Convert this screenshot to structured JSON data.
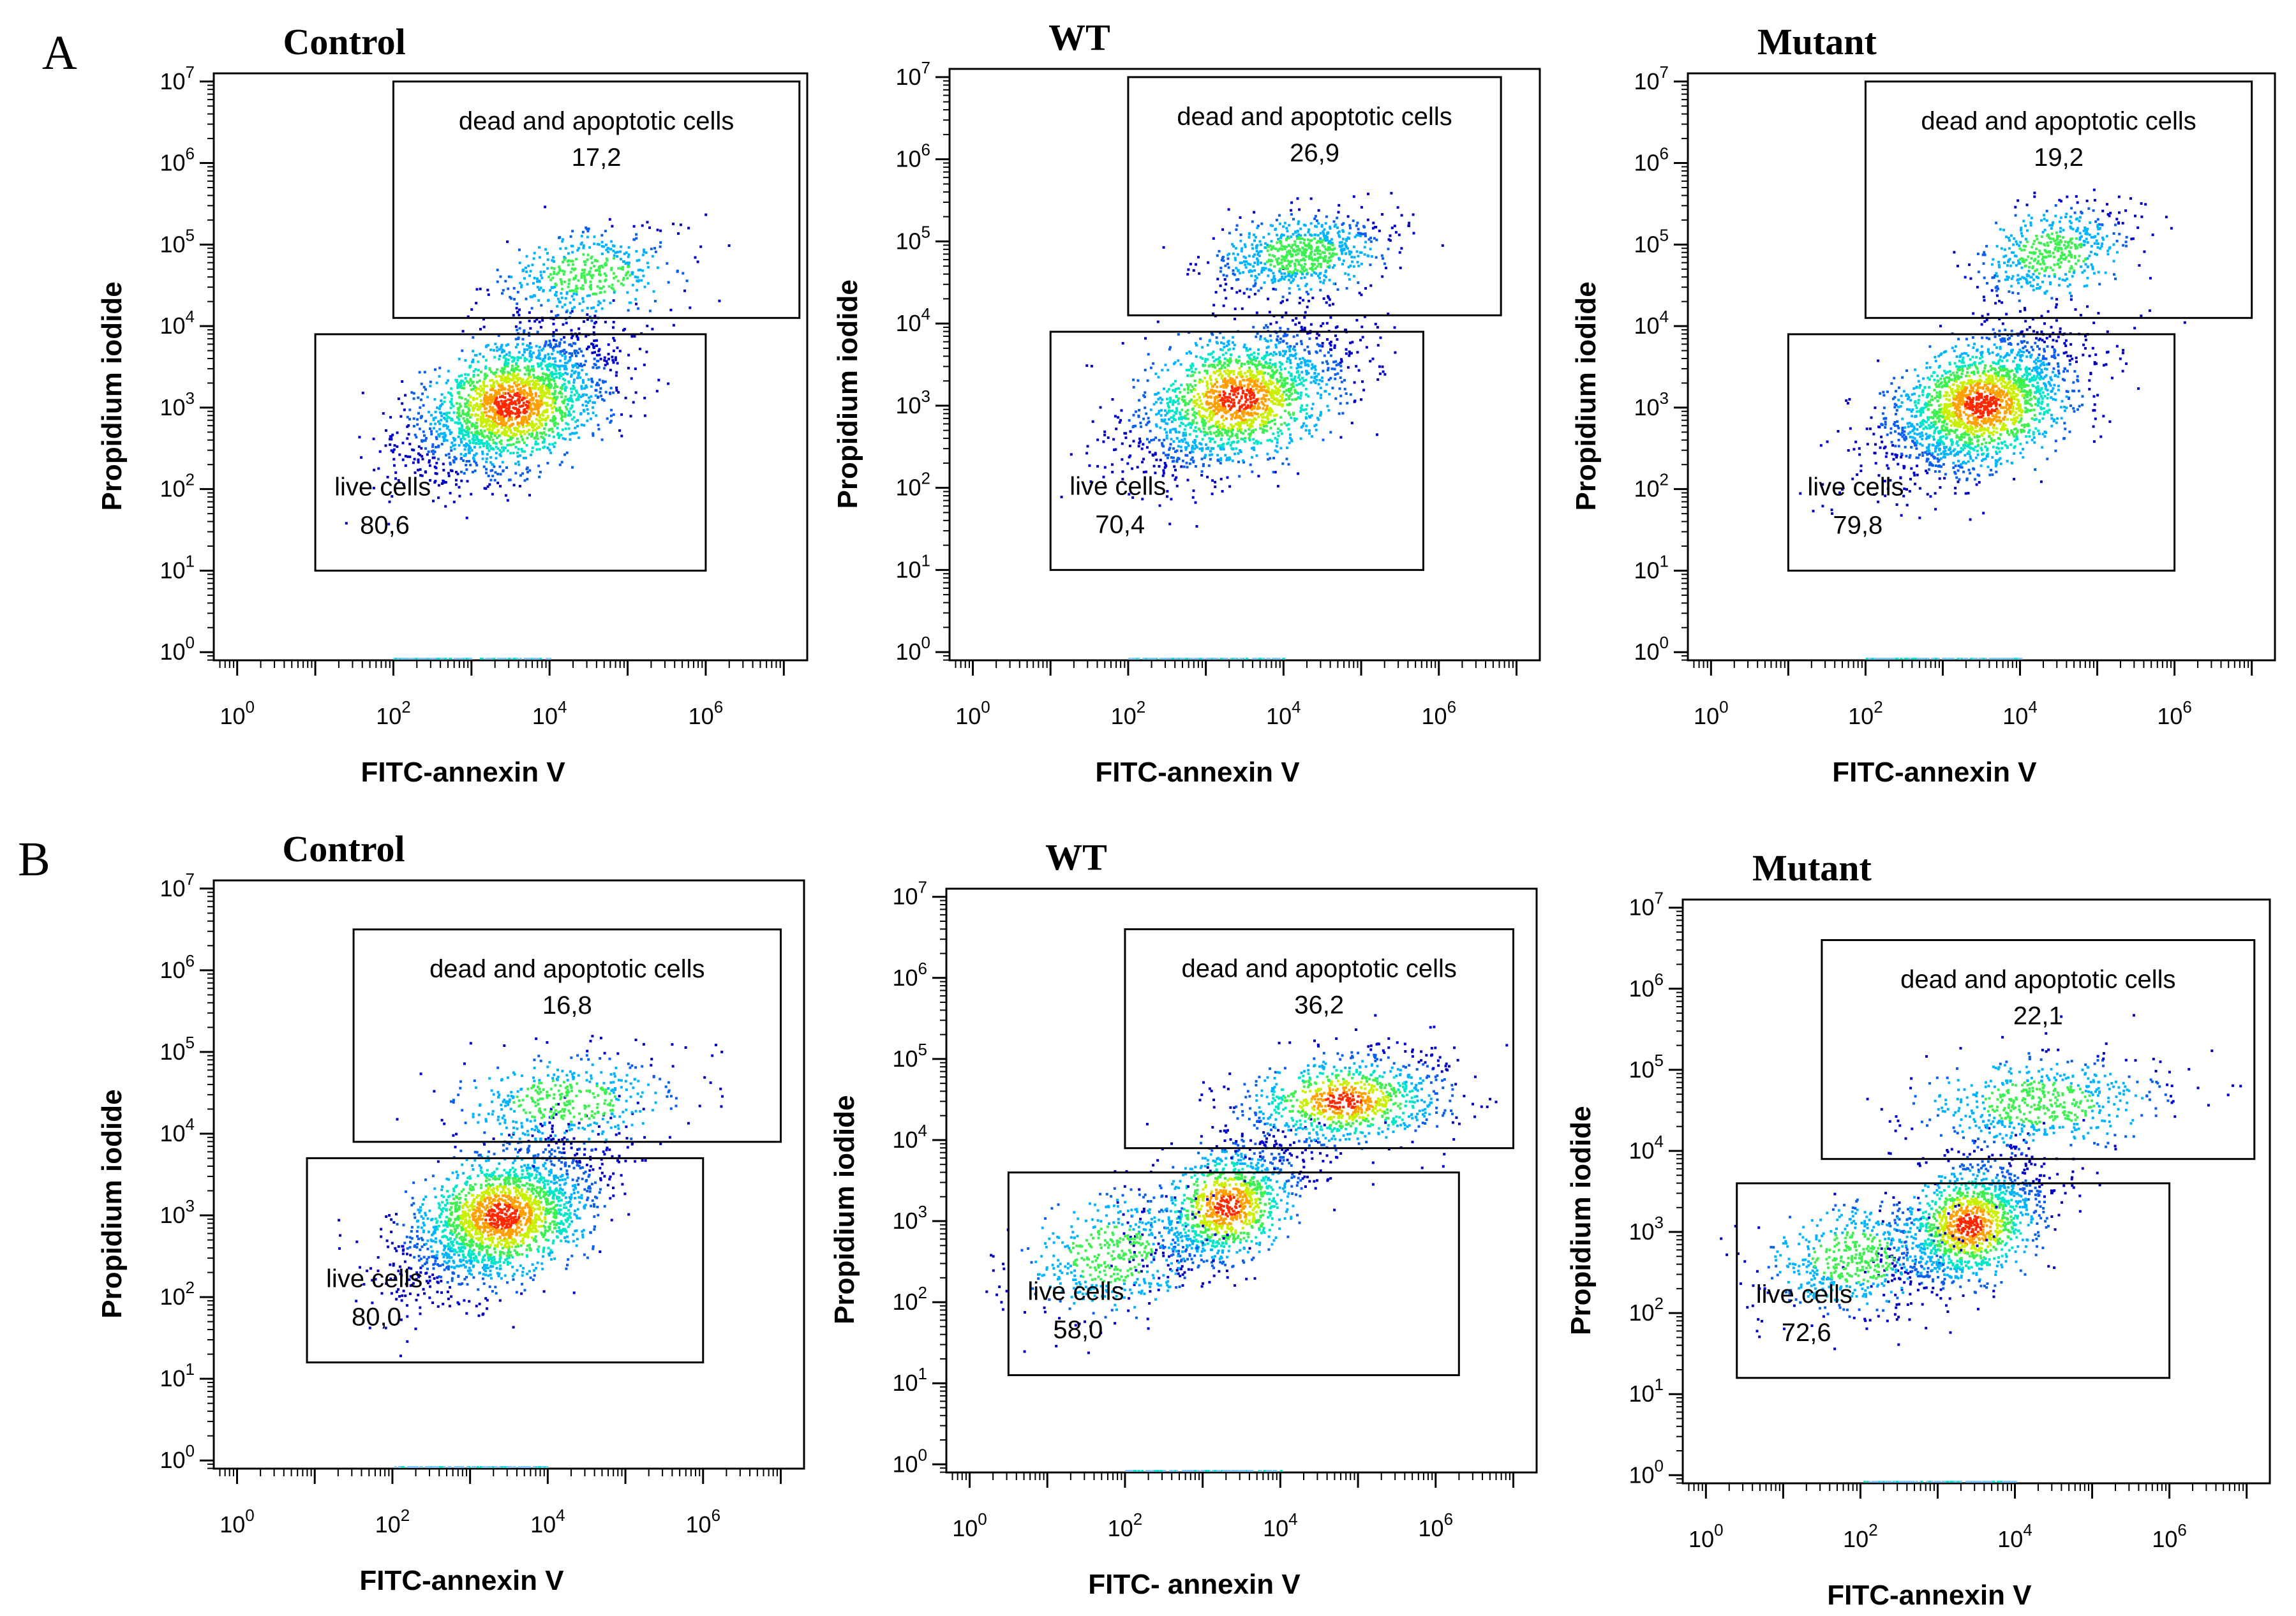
{
  "figure": {
    "rows": [
      {
        "label": "A",
        "panels": [
          0,
          1,
          2
        ]
      },
      {
        "label": "B",
        "panels": [
          3,
          4,
          5
        ]
      }
    ]
  },
  "density_palette": [
    "#0000c8",
    "#0a5ff0",
    "#00b4ff",
    "#00e6c8",
    "#3cf050",
    "#c8f000",
    "#ffa000",
    "#ff2800"
  ],
  "chart_data": [
    {
      "type": "scatter",
      "plot_kind": "flow-cytometry-density",
      "panel": "A",
      "title": "Control",
      "xlabel": "FITC-annexin V",
      "ylabel": "Propidium iodide",
      "x_ticks": [
        "10^0",
        "10^2",
        "10^4",
        "10^6"
      ],
      "y_ticks": [
        "10^0",
        "10^1",
        "10^2",
        "10^3",
        "10^4",
        "10^5",
        "10^6",
        "10^7"
      ],
      "xlim_log10": [
        -0.3,
        7.3
      ],
      "ylim_log10": [
        -0.1,
        7.1
      ],
      "gates": [
        {
          "name": "dead and apoptotic cells",
          "value": "17,2",
          "x_range_log10": [
            2.0,
            7.2
          ],
          "y_range_log10": [
            4.1,
            7.0
          ]
        },
        {
          "name": "live cells",
          "value": "80,6",
          "x_range_log10": [
            1.0,
            6.0
          ],
          "y_range_log10": [
            1.0,
            3.9
          ]
        }
      ],
      "populations": [
        {
          "center_log10": [
            3.5,
            3.05
          ],
          "spread_log10": [
            0.65,
            0.45
          ],
          "correlation": 0.5,
          "share": 0.8
        },
        {
          "center_log10": [
            4.5,
            4.65
          ],
          "spread_log10": [
            0.6,
            0.28
          ],
          "correlation": 0.35,
          "share": 0.17
        }
      ]
    },
    {
      "type": "scatter",
      "plot_kind": "flow-cytometry-density",
      "panel": "A",
      "title": "WT",
      "xlabel": "FITC-annexin V",
      "ylabel": "Propidium iodide",
      "x_ticks": [
        "10^0",
        "10^2",
        "10^4",
        "10^6"
      ],
      "y_ticks": [
        "10^0",
        "10^1",
        "10^2",
        "10^3",
        "10^4",
        "10^5",
        "10^6",
        "10^7"
      ],
      "xlim_log10": [
        -0.3,
        7.3
      ],
      "ylim_log10": [
        -0.1,
        7.1
      ],
      "gates": [
        {
          "name": "dead and apoptotic cells",
          "value": "26,9",
          "x_range_log10": [
            2.0,
            6.8
          ],
          "y_range_log10": [
            4.1,
            7.0
          ]
        },
        {
          "name": "live cells",
          "value": "70,4",
          "x_range_log10": [
            1.0,
            5.8
          ],
          "y_range_log10": [
            1.0,
            3.9
          ]
        }
      ],
      "populations": [
        {
          "center_log10": [
            3.4,
            3.1
          ],
          "spread_log10": [
            0.7,
            0.45
          ],
          "correlation": 0.5,
          "share": 0.7
        },
        {
          "center_log10": [
            4.2,
            4.85
          ],
          "spread_log10": [
            0.55,
            0.25
          ],
          "correlation": 0.3,
          "share": 0.27
        }
      ]
    },
    {
      "type": "scatter",
      "plot_kind": "flow-cytometry-density",
      "panel": "A",
      "title": "Mutant",
      "xlabel": "FITC-annexin V",
      "ylabel": "Propidium iodide",
      "x_ticks": [
        "10^0",
        "10^2",
        "10^4",
        "10^6"
      ],
      "y_ticks": [
        "10^0",
        "10^1",
        "10^2",
        "10^3",
        "10^4",
        "10^5",
        "10^6",
        "10^7"
      ],
      "xlim_log10": [
        -0.3,
        7.3
      ],
      "ylim_log10": [
        -0.1,
        7.1
      ],
      "gates": [
        {
          "name": "dead and apoptotic cells",
          "value": "19,2",
          "x_range_log10": [
            2.0,
            7.0
          ],
          "y_range_log10": [
            4.1,
            7.0
          ]
        },
        {
          "name": "live cells",
          "value": "79,8",
          "x_range_log10": [
            1.0,
            6.0
          ],
          "y_range_log10": [
            1.0,
            3.9
          ]
        }
      ],
      "populations": [
        {
          "center_log10": [
            3.5,
            3.05
          ],
          "spread_log10": [
            0.65,
            0.45
          ],
          "correlation": 0.5,
          "share": 0.8
        },
        {
          "center_log10": [
            4.4,
            4.9
          ],
          "spread_log10": [
            0.5,
            0.3
          ],
          "correlation": 0.4,
          "share": 0.19
        }
      ]
    },
    {
      "type": "scatter",
      "plot_kind": "flow-cytometry-density",
      "panel": "B",
      "title": "Control",
      "xlabel": "FITC-annexin V",
      "ylabel": "Propidium iodide",
      "x_ticks": [
        "10^0",
        "10^2",
        "10^4",
        "10^6"
      ],
      "y_ticks": [
        "10^0",
        "10^1",
        "10^2",
        "10^3",
        "10^4",
        "10^5",
        "10^6",
        "10^7"
      ],
      "xlim_log10": [
        -0.3,
        7.3
      ],
      "ylim_log10": [
        -0.1,
        7.1
      ],
      "gates": [
        {
          "name": "dead and apoptotic cells",
          "value": "16,8",
          "x_range_log10": [
            1.5,
            7.0
          ],
          "y_range_log10": [
            3.9,
            6.5
          ]
        },
        {
          "name": "live cells",
          "value": "80,0",
          "x_range_log10": [
            0.9,
            6.0
          ],
          "y_range_log10": [
            1.2,
            3.7
          ]
        }
      ],
      "populations": [
        {
          "center_log10": [
            3.4,
            3.0
          ],
          "spread_log10": [
            0.65,
            0.45
          ],
          "correlation": 0.5,
          "share": 0.8
        },
        {
          "center_log10": [
            4.2,
            4.4
          ],
          "spread_log10": [
            0.75,
            0.3
          ],
          "correlation": 0.3,
          "share": 0.17
        }
      ]
    },
    {
      "type": "scatter",
      "plot_kind": "flow-cytometry-density",
      "panel": "B",
      "title": "WT",
      "xlabel": "FITC- annexin V",
      "ylabel": "Propidium iodide",
      "x_ticks": [
        "10^0",
        "10^2",
        "10^4",
        "10^6"
      ],
      "y_ticks": [
        "10^0",
        "10^1",
        "10^2",
        "10^3",
        "10^4",
        "10^5",
        "10^6",
        "10^7"
      ],
      "xlim_log10": [
        -0.3,
        7.3
      ],
      "ylim_log10": [
        -0.1,
        7.1
      ],
      "gates": [
        {
          "name": "dead and apoptotic cells",
          "value": "36,2",
          "x_range_log10": [
            2.0,
            7.0
          ],
          "y_range_log10": [
            3.9,
            6.6
          ]
        },
        {
          "name": "live cells",
          "value": "58,0",
          "x_range_log10": [
            0.5,
            6.3
          ],
          "y_range_log10": [
            1.1,
            3.6
          ]
        }
      ],
      "populations": [
        {
          "center_log10": [
            3.3,
            3.2
          ],
          "spread_log10": [
            0.5,
            0.4
          ],
          "correlation": 0.5,
          "share": 0.42
        },
        {
          "center_log10": [
            1.8,
            2.6
          ],
          "spread_log10": [
            0.6,
            0.4
          ],
          "correlation": 0.3,
          "share": 0.18
        },
        {
          "center_log10": [
            4.8,
            4.5
          ],
          "spread_log10": [
            0.7,
            0.3
          ],
          "correlation": 0.3,
          "share": 0.36
        }
      ]
    },
    {
      "type": "scatter",
      "plot_kind": "flow-cytometry-density",
      "panel": "B",
      "title": "Mutant",
      "xlabel": "FITC-annexin V",
      "ylabel": "Propidium iodide",
      "x_ticks": [
        "10^0",
        "10^2",
        "10^4",
        "10^6"
      ],
      "y_ticks": [
        "10^0",
        "10^1",
        "10^2",
        "10^3",
        "10^4",
        "10^5",
        "10^6",
        "10^7"
      ],
      "xlim_log10": [
        -0.3,
        7.3
      ],
      "ylim_log10": [
        -0.1,
        7.1
      ],
      "gates": [
        {
          "name": "dead and apoptotic cells",
          "value": "22,1",
          "x_range_log10": [
            1.5,
            7.1
          ],
          "y_range_log10": [
            3.9,
            6.6
          ]
        },
        {
          "name": "live cells",
          "value": "72,6",
          "x_range_log10": [
            0.4,
            6.0
          ],
          "y_range_log10": [
            1.2,
            3.6
          ]
        }
      ],
      "populations": [
        {
          "center_log10": [
            3.4,
            3.1
          ],
          "spread_log10": [
            0.5,
            0.4
          ],
          "correlation": 0.5,
          "share": 0.52
        },
        {
          "center_log10": [
            1.9,
            2.7
          ],
          "spread_log10": [
            0.6,
            0.35
          ],
          "correlation": 0.3,
          "share": 0.2
        },
        {
          "center_log10": [
            4.3,
            4.6
          ],
          "spread_log10": [
            0.8,
            0.3
          ],
          "correlation": 0.3,
          "share": 0.22
        }
      ]
    }
  ]
}
